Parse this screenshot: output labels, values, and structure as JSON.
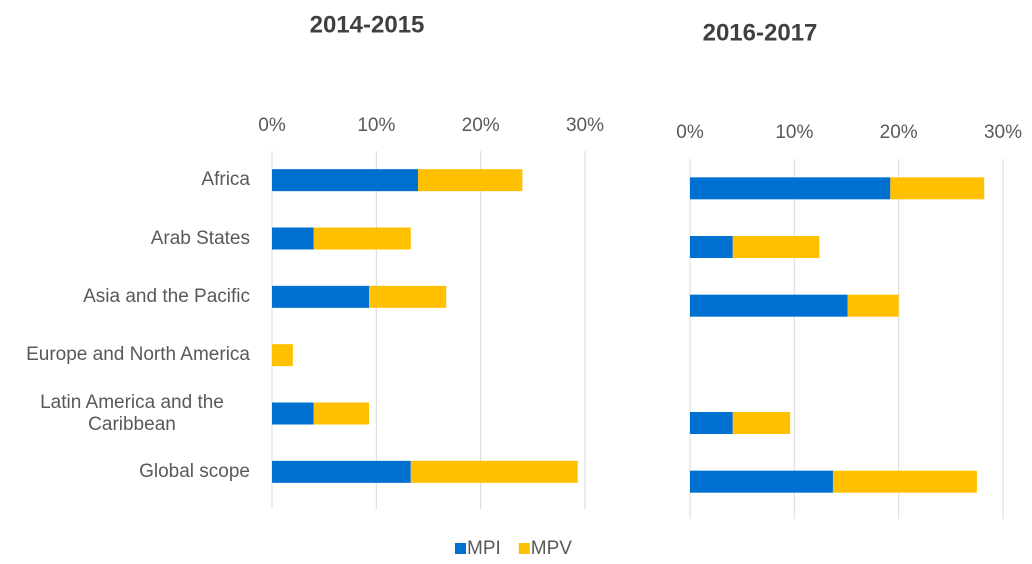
{
  "chart_data": [
    {
      "type": "bar",
      "orientation": "horizontal",
      "stacked": true,
      "title": "2014-2015",
      "categories": [
        "Africa",
        "Arab States",
        "Asia and the Pacific",
        "Europe and North America",
        "Latin America and the Caribbean",
        "Global scope"
      ],
      "series": [
        {
          "name": "MPI",
          "color": "#0070d0",
          "values": [
            14,
            4,
            9.3,
            0,
            4,
            13.3
          ]
        },
        {
          "name": "MPV",
          "color": "#ffc000",
          "values": [
            10,
            9.3,
            7.4,
            2,
            5.3,
            16
          ]
        }
      ],
      "xlim": [
        0,
        30
      ],
      "xticks": [
        {
          "value": 0,
          "label": "0%"
        },
        {
          "value": 10,
          "label": "10%"
        },
        {
          "value": 20,
          "label": "20%"
        },
        {
          "value": 30,
          "label": "30%"
        }
      ],
      "grid": true
    },
    {
      "type": "bar",
      "orientation": "horizontal",
      "stacked": true,
      "title": "2016-2017",
      "series": [
        {
          "name": "MPI",
          "color": "#0070d0",
          "values": [
            19.2,
            4.1,
            15.1,
            null,
            4.1,
            13.7
          ]
        },
        {
          "name": "MPV",
          "color": "#ffc000",
          "values": [
            9,
            8.3,
            4.9,
            null,
            5.5,
            13.8
          ]
        }
      ],
      "xlim": [
        0,
        30
      ],
      "xticks": [
        {
          "value": 0,
          "label": "0%"
        },
        {
          "value": 10,
          "label": "10%"
        },
        {
          "value": 20,
          "label": "20%"
        },
        {
          "value": 30,
          "label": "30%"
        }
      ],
      "grid": true
    }
  ]
}
